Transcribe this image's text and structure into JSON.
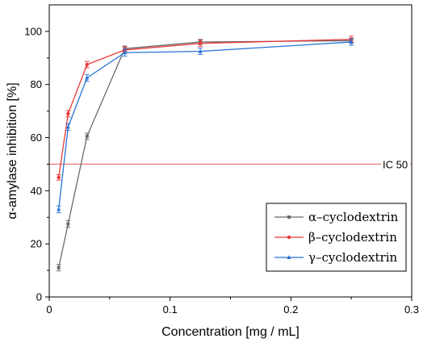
{
  "chart_data": {
    "type": "line",
    "xlabel": "Concentration [mg / mL]",
    "ylabel": "α-amylase inhibition [%]",
    "xlim": [
      0,
      0.3
    ],
    "ylim": [
      0,
      110
    ],
    "xticks": [
      0,
      0.1,
      0.2,
      0.3
    ],
    "xtick_labels": [
      "0",
      "0.1",
      "0.2",
      "0.3"
    ],
    "yticks": [
      0,
      20,
      40,
      60,
      80,
      100
    ],
    "ytick_labels": [
      "0",
      "20",
      "40",
      "60",
      "80",
      "100"
    ],
    "grid": false,
    "legend_position": "bottom-right",
    "x": [
      0.0078,
      0.0156,
      0.03125,
      0.0625,
      0.125,
      0.25
    ],
    "series": [
      {
        "name": "α–cyclodextrin",
        "color": "#6b6b6b",
        "marker": "square",
        "values": [
          11,
          27.5,
          60.5,
          93.5,
          96,
          96.5
        ],
        "errors": [
          1.2,
          1.3,
          1.2,
          1.0,
          1.0,
          1.0
        ]
      },
      {
        "name": "β–cyclodextrin",
        "color": "#e8393a",
        "marker": "circle",
        "values": [
          45,
          69,
          87.5,
          93,
          95.5,
          97
        ],
        "errors": [
          1.0,
          1.2,
          1.2,
          1.2,
          1.2,
          1.2
        ]
      },
      {
        "name": "γ–cyclodextrin",
        "color": "#2672d6",
        "marker": "triangle",
        "values": [
          33,
          64,
          82.5,
          92,
          92.5,
          96
        ],
        "errors": [
          1.3,
          1.3,
          1.3,
          1.3,
          1.2,
          1.2
        ]
      }
    ],
    "reference_line": {
      "label": "IC 50",
      "y": 50,
      "color": "#f08080"
    }
  }
}
